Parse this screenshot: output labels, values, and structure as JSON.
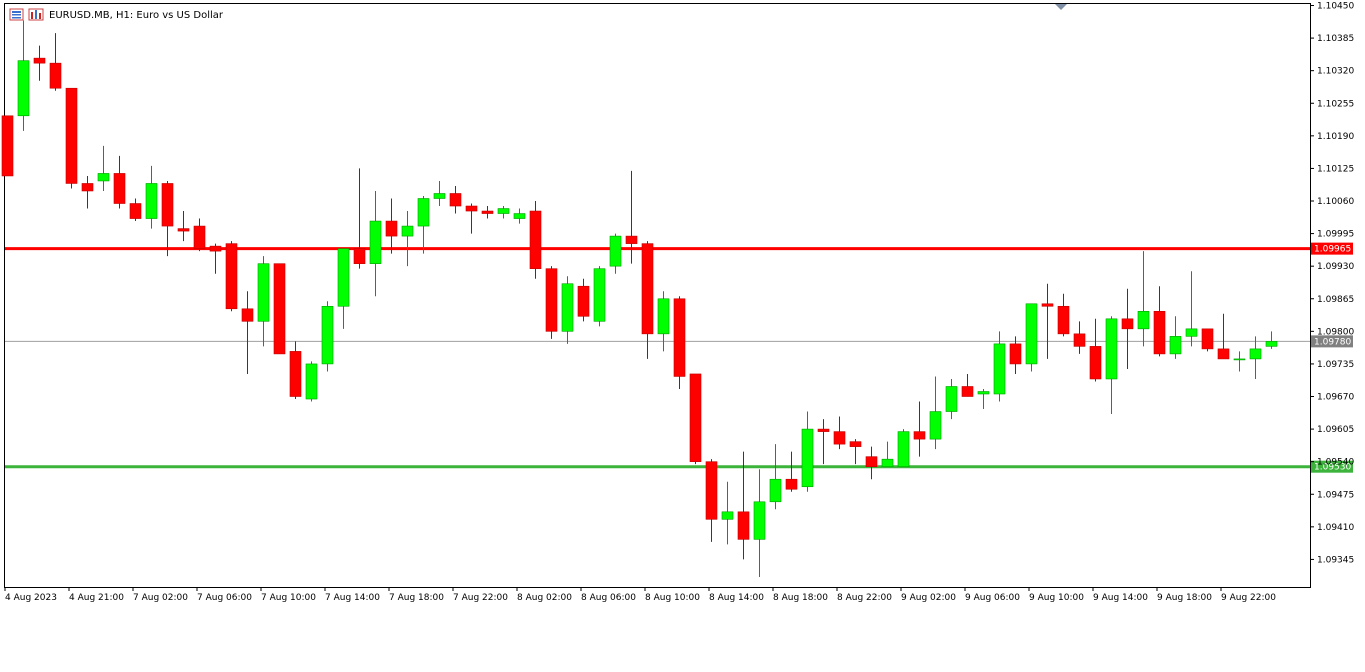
{
  "window": {
    "symbol_title": "EURUSD.MB, H1:  Euro vs US Dollar"
  },
  "icons": [
    "window-menu-icon",
    "chart-bars-icon"
  ],
  "colors": {
    "bull": "#00ff00",
    "bear": "#ff0000",
    "wick_bull": "#00a000",
    "wick_bear": "#c00000",
    "resistance": "#ff0000",
    "support": "#3cb43c",
    "current_price_line": "#a0a0a0",
    "current_price_tag": "#808080"
  },
  "chart_data": {
    "type": "candlestick",
    "title": "EURUSD.MB, H1:  Euro vs US Dollar",
    "ylim": [
      1.0929,
      1.10455
    ],
    "y_ticks": [
      "1.10450",
      "1.10385",
      "1.10320",
      "1.10255",
      "1.10190",
      "1.10125",
      "1.10060",
      "1.09995",
      "1.09930",
      "1.09865",
      "1.09800",
      "1.09735",
      "1.09670",
      "1.09605",
      "1.09540",
      "1.09475",
      "1.09410",
      "1.09345"
    ],
    "x_labels": [
      "4 Aug 2023",
      "4 Aug 21:00",
      "7 Aug 02:00",
      "7 Aug 06:00",
      "7 Aug 10:00",
      "7 Aug 14:00",
      "7 Aug 18:00",
      "7 Aug 22:00",
      "8 Aug 02:00",
      "8 Aug 06:00",
      "8 Aug 10:00",
      "8 Aug 14:00",
      "8 Aug 18:00",
      "8 Aug 22:00",
      "9 Aug 02:00",
      "9 Aug 06:00",
      "9 Aug 10:00",
      "9 Aug 14:00",
      "9 Aug 18:00",
      "9 Aug 22:00"
    ],
    "ohlc": [
      [
        1.1023,
        1.1023,
        1.1011,
        1.1011
      ],
      [
        1.1023,
        1.1042,
        1.102,
        1.1034
      ],
      [
        1.10345,
        1.1037,
        1.103,
        1.10335
      ],
      [
        1.10335,
        1.10395,
        1.1028,
        1.10285
      ],
      [
        1.10285,
        1.10285,
        1.10085,
        1.10095
      ],
      [
        1.10095,
        1.1011,
        1.10045,
        1.1008
      ],
      [
        1.101,
        1.1017,
        1.1008,
        1.10115
      ],
      [
        1.10115,
        1.1015,
        1.10045,
        1.10055
      ],
      [
        1.10055,
        1.10065,
        1.1002,
        1.10025
      ],
      [
        1.10025,
        1.1013,
        1.10005,
        1.10095
      ],
      [
        1.10095,
        1.101,
        1.0995,
        1.1001
      ],
      [
        1.10005,
        1.1004,
        1.0998,
        1.1
      ],
      [
        1.1001,
        1.10025,
        1.0996,
        1.09965
      ],
      [
        1.0997,
        1.09975,
        1.09915,
        1.0996
      ],
      [
        1.09975,
        1.0998,
        1.0984,
        1.09845
      ],
      [
        1.09845,
        1.0988,
        1.09715,
        1.0982
      ],
      [
        1.0982,
        1.0995,
        1.0977,
        1.09935
      ],
      [
        1.09935,
        1.09935,
        1.09755,
        1.09755
      ],
      [
        1.0976,
        1.0978,
        1.09665,
        1.0967
      ],
      [
        1.09665,
        1.0974,
        1.0966,
        1.09735
      ],
      [
        1.09735,
        1.0986,
        1.0972,
        1.0985
      ],
      [
        1.0985,
        1.09965,
        1.09805,
        1.09965
      ],
      [
        1.09965,
        1.10125,
        1.09925,
        1.09935
      ],
      [
        1.09935,
        1.1008,
        1.0987,
        1.1002
      ],
      [
        1.1002,
        1.10065,
        1.09955,
        1.0999
      ],
      [
        1.0999,
        1.1004,
        1.0993,
        1.1001
      ],
      [
        1.1001,
        1.1007,
        1.09955,
        1.10065
      ],
      [
        1.10065,
        1.101,
        1.1005,
        1.10075
      ],
      [
        1.10075,
        1.1009,
        1.10035,
        1.1005
      ],
      [
        1.1005,
        1.10055,
        1.09995,
        1.1004
      ],
      [
        1.1004,
        1.1005,
        1.10025,
        1.10035
      ],
      [
        1.10035,
        1.1005,
        1.10025,
        1.10045
      ],
      [
        1.10025,
        1.10045,
        1.10015,
        1.10035
      ],
      [
        1.1004,
        1.1006,
        1.09905,
        1.09925
      ],
      [
        1.09925,
        1.0993,
        1.09785,
        1.098
      ],
      [
        1.098,
        1.0991,
        1.09775,
        1.09895
      ],
      [
        1.0989,
        1.09905,
        1.0982,
        1.0983
      ],
      [
        1.0982,
        1.0993,
        1.0981,
        1.09925
      ],
      [
        1.0993,
        1.09995,
        1.09915,
        1.0999
      ],
      [
        1.0999,
        1.1012,
        1.09935,
        1.09975
      ],
      [
        1.09975,
        1.0998,
        1.09745,
        1.09795
      ],
      [
        1.09795,
        1.0988,
        1.0976,
        1.09865
      ],
      [
        1.09865,
        1.0987,
        1.09685,
        1.0971
      ],
      [
        1.09715,
        1.09715,
        1.09535,
        1.0954
      ],
      [
        1.0954,
        1.09545,
        1.0938,
        1.09425
      ],
      [
        1.09425,
        1.095,
        1.09375,
        1.0944
      ],
      [
        1.0944,
        1.0956,
        1.09345,
        1.09385
      ],
      [
        1.09385,
        1.09525,
        1.0931,
        1.0946
      ],
      [
        1.0946,
        1.09575,
        1.09445,
        1.09505
      ],
      [
        1.09505,
        1.0956,
        1.0948,
        1.09485
      ],
      [
        1.0949,
        1.0964,
        1.0948,
        1.09605
      ],
      [
        1.09605,
        1.09625,
        1.09535,
        1.096
      ],
      [
        1.096,
        1.0963,
        1.09565,
        1.09575
      ],
      [
        1.0958,
        1.09585,
        1.09535,
        1.0957
      ],
      [
        1.0955,
        1.0957,
        1.09505,
        1.0953
      ],
      [
        1.0953,
        1.0958,
        1.0953,
        1.09545
      ],
      [
        1.0953,
        1.09605,
        1.0953,
        1.096
      ],
      [
        1.096,
        1.0966,
        1.0955,
        1.09585
      ],
      [
        1.09585,
        1.0971,
        1.09565,
        1.0964
      ],
      [
        1.0964,
        1.09705,
        1.09625,
        1.0969
      ],
      [
        1.0969,
        1.09715,
        1.0967,
        1.0967
      ],
      [
        1.09675,
        1.09685,
        1.09645,
        1.0968
      ],
      [
        1.09675,
        1.098,
        1.0966,
        1.09775
      ],
      [
        1.09775,
        1.0979,
        1.09715,
        1.09735
      ],
      [
        1.09735,
        1.09855,
        1.0972,
        1.09855
      ],
      [
        1.09855,
        1.09895,
        1.09745,
        1.0985
      ],
      [
        1.0985,
        1.09875,
        1.0979,
        1.09795
      ],
      [
        1.09795,
        1.0982,
        1.09755,
        1.0977
      ],
      [
        1.0977,
        1.09825,
        1.097,
        1.09705
      ],
      [
        1.09705,
        1.0983,
        1.09635,
        1.09825
      ],
      [
        1.09825,
        1.09885,
        1.09725,
        1.09805
      ],
      [
        1.09805,
        1.0996,
        1.0977,
        1.0984
      ],
      [
        1.0984,
        1.0989,
        1.0975,
        1.09755
      ],
      [
        1.09755,
        1.0983,
        1.09745,
        1.0979
      ],
      [
        1.0979,
        1.0992,
        1.0977,
        1.09805
      ],
      [
        1.09805,
        1.09805,
        1.0976,
        1.09765
      ],
      [
        1.09765,
        1.09835,
        1.09745,
        1.09745
      ],
      [
        1.09745,
        1.0976,
        1.0972,
        1.09745
      ],
      [
        1.09745,
        1.0979,
        1.09705,
        1.09765
      ],
      [
        1.0977,
        1.098,
        1.09765,
        1.0978
      ]
    ],
    "levels": [
      {
        "price": 1.09965,
        "label": "1.09965",
        "role": "resistance"
      },
      {
        "price": 1.0953,
        "label": "1.09530",
        "role": "support"
      },
      {
        "price": 1.0978,
        "label": "1.09780",
        "role": "current"
      }
    ]
  }
}
